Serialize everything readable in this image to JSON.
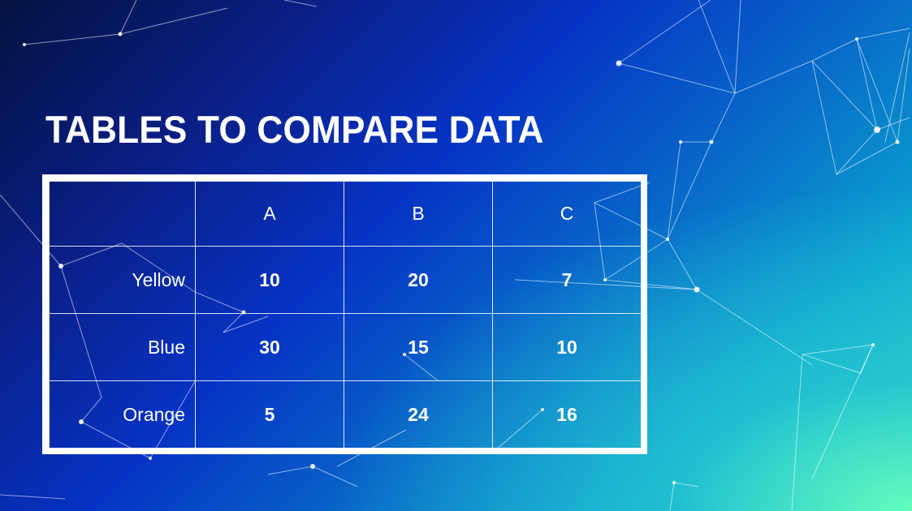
{
  "slide": {
    "title": "TABLES TO COMPARE DATA",
    "background_colors": [
      "#02123f",
      "#0633c4",
      "#0aa6cf",
      "#64ffbe"
    ]
  },
  "table": {
    "columns": [
      "",
      "A",
      "B",
      "C"
    ],
    "rows": [
      {
        "label": "Yellow",
        "values": [
          "10",
          "20",
          "7"
        ]
      },
      {
        "label": "Blue",
        "values": [
          "30",
          "15",
          "10"
        ]
      },
      {
        "label": "Orange",
        "values": [
          "5",
          "24",
          "16"
        ]
      }
    ]
  }
}
